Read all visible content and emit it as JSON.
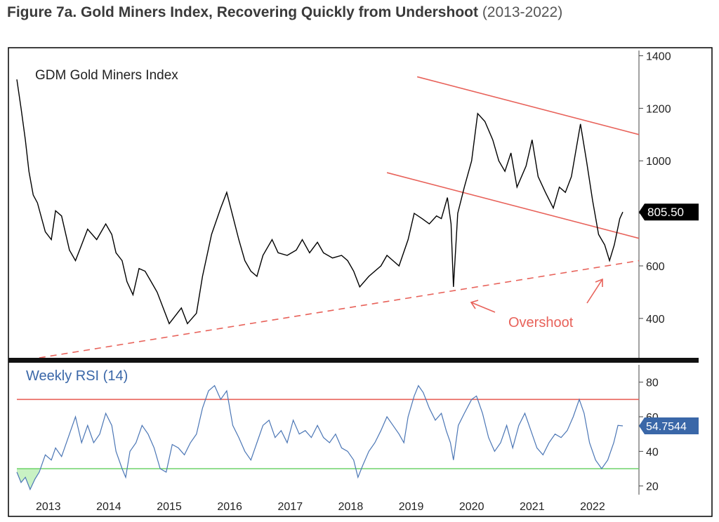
{
  "figure": {
    "title_bold": "Figure 7a. Gold Miners Index, Recovering Quickly from Undershoot",
    "title_period": "(2013-2022)"
  },
  "colors": {
    "price_line": "#000000",
    "channel": "#e8625a",
    "rsi_line": "#4b76b5",
    "rsi_upper": "#e8625a",
    "rsi_lower": "#6fd46a",
    "oversold_fill": "#c9f2c4",
    "badge_price": "#000000",
    "badge_rsi": "#3a67a8"
  },
  "chart_data": [
    {
      "type": "line",
      "title": "GDM Gold Miners Index",
      "ylim": [
        250,
        1420
      ],
      "yticks": [
        "400",
        "600",
        "800",
        "1000",
        "1200",
        "1400"
      ],
      "last_value_label": "805.50",
      "annotation": "Overshoot",
      "x_years": [
        "2013",
        "2014",
        "2015",
        "2016",
        "2017",
        "2018",
        "2019",
        "2020",
        "2021",
        "2022"
      ],
      "series": [
        {
          "name": "GDM Gold Miners Index",
          "points": [
            [
              2012.98,
              1310
            ],
            [
              2013.05,
              1200
            ],
            [
              2013.12,
              1080
            ],
            [
              2013.18,
              960
            ],
            [
              2013.25,
              870
            ],
            [
              2013.32,
              840
            ],
            [
              2013.45,
              730
            ],
            [
              2013.55,
              700
            ],
            [
              2013.62,
              810
            ],
            [
              2013.72,
              790
            ],
            [
              2013.85,
              660
            ],
            [
              2013.95,
              620
            ],
            [
              2014.05,
              680
            ],
            [
              2014.15,
              740
            ],
            [
              2014.3,
              700
            ],
            [
              2014.45,
              760
            ],
            [
              2014.55,
              720
            ],
            [
              2014.62,
              650
            ],
            [
              2014.72,
              620
            ],
            [
              2014.8,
              540
            ],
            [
              2014.9,
              490
            ],
            [
              2015.0,
              590
            ],
            [
              2015.1,
              580
            ],
            [
              2015.2,
              540
            ],
            [
              2015.3,
              500
            ],
            [
              2015.4,
              440
            ],
            [
              2015.5,
              380
            ],
            [
              2015.6,
              410
            ],
            [
              2015.7,
              440
            ],
            [
              2015.8,
              380
            ],
            [
              2015.95,
              420
            ],
            [
              2016.05,
              560
            ],
            [
              2016.2,
              720
            ],
            [
              2016.35,
              820
            ],
            [
              2016.45,
              880
            ],
            [
              2016.55,
              790
            ],
            [
              2016.65,
              700
            ],
            [
              2016.75,
              620
            ],
            [
              2016.85,
              580
            ],
            [
              2016.95,
              560
            ],
            [
              2017.05,
              640
            ],
            [
              2017.2,
              700
            ],
            [
              2017.3,
              650
            ],
            [
              2017.45,
              640
            ],
            [
              2017.6,
              660
            ],
            [
              2017.7,
              700
            ],
            [
              2017.82,
              650
            ],
            [
              2017.95,
              690
            ],
            [
              2018.05,
              650
            ],
            [
              2018.2,
              630
            ],
            [
              2018.35,
              640
            ],
            [
              2018.45,
              620
            ],
            [
              2018.55,
              580
            ],
            [
              2018.65,
              520
            ],
            [
              2018.8,
              560
            ],
            [
              2019.0,
              600
            ],
            [
              2019.1,
              640
            ],
            [
              2019.2,
              620
            ],
            [
              2019.3,
              600
            ],
            [
              2019.45,
              700
            ],
            [
              2019.55,
              800
            ],
            [
              2019.68,
              780
            ],
            [
              2019.8,
              760
            ],
            [
              2019.92,
              790
            ],
            [
              2020.0,
              780
            ],
            [
              2020.1,
              860
            ],
            [
              2020.16,
              760
            ],
            [
              2020.2,
              520
            ],
            [
              2020.27,
              800
            ],
            [
              2020.38,
              900
            ],
            [
              2020.5,
              1000
            ],
            [
              2020.6,
              1180
            ],
            [
              2020.72,
              1150
            ],
            [
              2020.85,
              1080
            ],
            [
              2020.95,
              1000
            ],
            [
              2021.05,
              960
            ],
            [
              2021.15,
              1030
            ],
            [
              2021.25,
              900
            ],
            [
              2021.4,
              980
            ],
            [
              2021.5,
              1080
            ],
            [
              2021.6,
              940
            ],
            [
              2021.72,
              880
            ],
            [
              2021.85,
              820
            ],
            [
              2021.95,
              900
            ],
            [
              2022.05,
              880
            ],
            [
              2022.15,
              940
            ],
            [
              2022.3,
              1140
            ],
            [
              2022.4,
              1000
            ],
            [
              2022.5,
              850
            ],
            [
              2022.6,
              720
            ],
            [
              2022.7,
              680
            ],
            [
              2022.78,
              620
            ],
            [
              2022.86,
              680
            ],
            [
              2022.95,
              780
            ],
            [
              2023.0,
              805
            ]
          ]
        }
      ]
    },
    {
      "type": "line",
      "title": "Weekly RSI (14)",
      "ylim": [
        15,
        90
      ],
      "yticks": [
        "20",
        "40",
        "60",
        "80"
      ],
      "reference_lines": [
        70,
        30
      ],
      "last_value_label": "54.7544",
      "x_years": [
        "2013",
        "2014",
        "2015",
        "2016",
        "2017",
        "2018",
        "2019",
        "2020",
        "2021",
        "2022"
      ],
      "series": [
        {
          "name": "Weekly RSI (14)",
          "points": [
            [
              2012.98,
              28
            ],
            [
              2013.05,
              22
            ],
            [
              2013.12,
              25
            ],
            [
              2013.2,
              18
            ],
            [
              2013.28,
              24
            ],
            [
              2013.35,
              28
            ],
            [
              2013.45,
              38
            ],
            [
              2013.55,
              35
            ],
            [
              2013.62,
              42
            ],
            [
              2013.72,
              37
            ],
            [
              2013.85,
              50
            ],
            [
              2013.95,
              60
            ],
            [
              2014.05,
              45
            ],
            [
              2014.15,
              55
            ],
            [
              2014.25,
              45
            ],
            [
              2014.35,
              50
            ],
            [
              2014.45,
              62
            ],
            [
              2014.55,
              55
            ],
            [
              2014.62,
              40
            ],
            [
              2014.72,
              30
            ],
            [
              2014.78,
              25
            ],
            [
              2014.85,
              40
            ],
            [
              2014.95,
              45
            ],
            [
              2015.05,
              55
            ],
            [
              2015.15,
              50
            ],
            [
              2015.25,
              42
            ],
            [
              2015.35,
              30
            ],
            [
              2015.45,
              28
            ],
            [
              2015.55,
              44
            ],
            [
              2015.65,
              42
            ],
            [
              2015.75,
              38
            ],
            [
              2015.85,
              45
            ],
            [
              2015.95,
              50
            ],
            [
              2016.05,
              65
            ],
            [
              2016.15,
              75
            ],
            [
              2016.25,
              78
            ],
            [
              2016.35,
              70
            ],
            [
              2016.45,
              75
            ],
            [
              2016.55,
              55
            ],
            [
              2016.65,
              48
            ],
            [
              2016.75,
              40
            ],
            [
              2016.85,
              35
            ],
            [
              2016.95,
              45
            ],
            [
              2017.05,
              55
            ],
            [
              2017.15,
              58
            ],
            [
              2017.25,
              48
            ],
            [
              2017.35,
              52
            ],
            [
              2017.45,
              45
            ],
            [
              2017.55,
              58
            ],
            [
              2017.65,
              50
            ],
            [
              2017.75,
              52
            ],
            [
              2017.85,
              48
            ],
            [
              2017.95,
              55
            ],
            [
              2018.05,
              48
            ],
            [
              2018.15,
              45
            ],
            [
              2018.25,
              50
            ],
            [
              2018.35,
              42
            ],
            [
              2018.45,
              40
            ],
            [
              2018.55,
              35
            ],
            [
              2018.62,
              25
            ],
            [
              2018.7,
              32
            ],
            [
              2018.8,
              40
            ],
            [
              2018.9,
              45
            ],
            [
              2019.0,
              52
            ],
            [
              2019.1,
              60
            ],
            [
              2019.2,
              55
            ],
            [
              2019.3,
              50
            ],
            [
              2019.38,
              45
            ],
            [
              2019.45,
              60
            ],
            [
              2019.55,
              72
            ],
            [
              2019.62,
              78
            ],
            [
              2019.7,
              74
            ],
            [
              2019.8,
              65
            ],
            [
              2019.9,
              58
            ],
            [
              2020.0,
              62
            ],
            [
              2020.08,
              52
            ],
            [
              2020.15,
              45
            ],
            [
              2020.2,
              35
            ],
            [
              2020.28,
              55
            ],
            [
              2020.38,
              62
            ],
            [
              2020.5,
              70
            ],
            [
              2020.58,
              72
            ],
            [
              2020.68,
              62
            ],
            [
              2020.78,
              48
            ],
            [
              2020.88,
              40
            ],
            [
              2020.98,
              45
            ],
            [
              2021.08,
              55
            ],
            [
              2021.18,
              42
            ],
            [
              2021.28,
              55
            ],
            [
              2021.38,
              62
            ],
            [
              2021.48,
              52
            ],
            [
              2021.58,
              42
            ],
            [
              2021.68,
              38
            ],
            [
              2021.78,
              45
            ],
            [
              2021.88,
              50
            ],
            [
              2021.98,
              48
            ],
            [
              2022.08,
              52
            ],
            [
              2022.18,
              60
            ],
            [
              2022.28,
              70
            ],
            [
              2022.36,
              62
            ],
            [
              2022.45,
              45
            ],
            [
              2022.55,
              35
            ],
            [
              2022.65,
              30
            ],
            [
              2022.75,
              35
            ],
            [
              2022.85,
              45
            ],
            [
              2022.92,
              55
            ],
            [
              2023.0,
              54.75
            ]
          ]
        }
      ]
    }
  ]
}
